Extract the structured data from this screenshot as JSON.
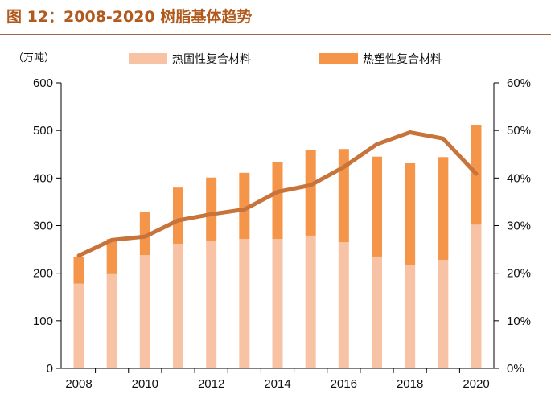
{
  "figure": {
    "title": "图 12：2008-2020 树脂基体趋势",
    "unit_label": "（万吨）"
  },
  "colors": {
    "title": "#b05a1e",
    "thermoset": "#f8c3a4",
    "thermoplastic": "#f4954a",
    "line": "#c8733a",
    "axis": "#000000"
  },
  "chart_data": {
    "type": "bar",
    "stacked": true,
    "x": [
      2008,
      2009,
      2010,
      2011,
      2012,
      2013,
      2014,
      2015,
      2016,
      2017,
      2018,
      2019,
      2020
    ],
    "x_tick_labels": [
      "2008",
      "2010",
      "2012",
      "2014",
      "2016",
      "2018",
      "2020"
    ],
    "series": [
      {
        "name": "热固性复合材料",
        "type": "bar",
        "axis": "left",
        "values": [
          178,
          198,
          238,
          262,
          268,
          272,
          272,
          279,
          265,
          235,
          218,
          228,
          302
        ]
      },
      {
        "name": "热塑性复合材料",
        "type": "bar",
        "axis": "left",
        "values": [
          57,
          74,
          91,
          118,
          133,
          139,
          162,
          179,
          196,
          210,
          213,
          216,
          210
        ]
      },
      {
        "type": "line",
        "axis": "right",
        "values": [
          0.237,
          0.27,
          0.277,
          0.311,
          0.324,
          0.334,
          0.371,
          0.385,
          0.423,
          0.471,
          0.496,
          0.483,
          0.409
        ]
      }
    ],
    "y_left": {
      "lim": [
        0,
        600
      ],
      "ticks": [
        0,
        100,
        200,
        300,
        400,
        500,
        600
      ]
    },
    "y_right": {
      "lim": [
        0,
        0.6
      ],
      "ticks": [
        "0%",
        "10%",
        "20%",
        "30%",
        "40%",
        "50%",
        "60%"
      ]
    },
    "legend_position": "top",
    "grid": false
  }
}
